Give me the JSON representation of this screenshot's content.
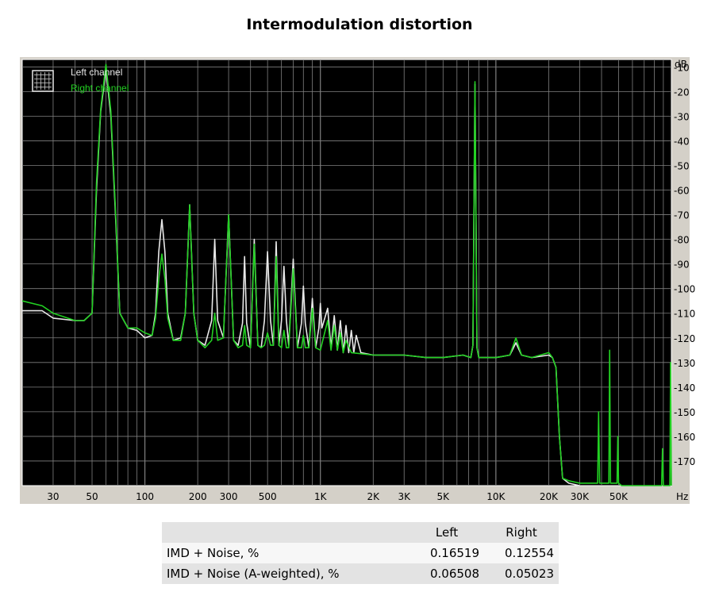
{
  "page": {
    "title": "Intermodulation distortion"
  },
  "chart_data": {
    "type": "line",
    "title": "Intermodulation distortion",
    "xlabel": "Hz",
    "ylabel": "dB",
    "xscale": "log",
    "xlim": [
      20,
      100000
    ],
    "ylim": [
      -180,
      -7
    ],
    "x_ticks": [
      {
        "v": 30,
        "label": "30"
      },
      {
        "v": 50,
        "label": "50"
      },
      {
        "v": 100,
        "label": "100"
      },
      {
        "v": 200,
        "label": "200"
      },
      {
        "v": 300,
        "label": "300"
      },
      {
        "v": 500,
        "label": "500"
      },
      {
        "v": 1000,
        "label": "1K"
      },
      {
        "v": 2000,
        "label": "2K"
      },
      {
        "v": 3000,
        "label": "3K"
      },
      {
        "v": 5000,
        "label": "5K"
      },
      {
        "v": 10000,
        "label": "10K"
      },
      {
        "v": 20000,
        "label": "20K"
      },
      {
        "v": 30000,
        "label": "30K"
      },
      {
        "v": 50000,
        "label": "50K"
      }
    ],
    "y_ticks": [
      -10,
      -20,
      -30,
      -40,
      -50,
      -60,
      -70,
      -80,
      -90,
      -100,
      -110,
      -120,
      -130,
      -140,
      -150,
      -160,
      -170
    ],
    "grid": true,
    "legend_position": "top-left",
    "colors": {
      "background": "#000000",
      "grid": "#808080",
      "left": "#e8e8e8",
      "right": "#22d022",
      "panel": "#d4d0c8"
    },
    "series": [
      {
        "name": "Left channel",
        "color": "#e8e8e8",
        "points": [
          [
            20,
            -109
          ],
          [
            26,
            -109
          ],
          [
            30,
            -112
          ],
          [
            40,
            -113
          ],
          [
            45,
            -113
          ],
          [
            50,
            -110
          ],
          [
            53,
            -60
          ],
          [
            56,
            -28
          ],
          [
            60,
            -11
          ],
          [
            64,
            -30
          ],
          [
            68,
            -70
          ],
          [
            72,
            -110
          ],
          [
            80,
            -116
          ],
          [
            90,
            -117
          ],
          [
            100,
            -120
          ],
          [
            110,
            -119
          ],
          [
            115,
            -110
          ],
          [
            120,
            -85
          ],
          [
            125,
            -72
          ],
          [
            130,
            -85
          ],
          [
            135,
            -110
          ],
          [
            145,
            -121
          ],
          [
            160,
            -120
          ],
          [
            170,
            -110
          ],
          [
            180,
            -66
          ],
          [
            190,
            -110
          ],
          [
            200,
            -121
          ],
          [
            220,
            -123
          ],
          [
            240,
            -113
          ],
          [
            250,
            -80
          ],
          [
            260,
            -113
          ],
          [
            280,
            -120
          ],
          [
            300,
            -70
          ],
          [
            320,
            -121
          ],
          [
            340,
            -123
          ],
          [
            360,
            -114
          ],
          [
            370,
            -87
          ],
          [
            380,
            -114
          ],
          [
            400,
            -124
          ],
          [
            420,
            -80
          ],
          [
            440,
            -123
          ],
          [
            460,
            -124
          ],
          [
            480,
            -113
          ],
          [
            500,
            -85
          ],
          [
            520,
            -113
          ],
          [
            540,
            -123
          ],
          [
            560,
            -81
          ],
          [
            580,
            -123
          ],
          [
            600,
            -113
          ],
          [
            620,
            -91
          ],
          [
            640,
            -113
          ],
          [
            660,
            -123
          ],
          [
            700,
            -88
          ],
          [
            740,
            -124
          ],
          [
            780,
            -114
          ],
          [
            800,
            -99
          ],
          [
            820,
            -114
          ],
          [
            860,
            -124
          ],
          [
            900,
            -104
          ],
          [
            940,
            -124
          ],
          [
            980,
            -116
          ],
          [
            1000,
            -106
          ],
          [
            1020,
            -116
          ],
          [
            1100,
            -108
          ],
          [
            1150,
            -124
          ],
          [
            1200,
            -111
          ],
          [
            1250,
            -125
          ],
          [
            1300,
            -113
          ],
          [
            1350,
            -126
          ],
          [
            1400,
            -115
          ],
          [
            1450,
            -126
          ],
          [
            1500,
            -117
          ],
          [
            1550,
            -126
          ],
          [
            1600,
            -119
          ],
          [
            1700,
            -126
          ],
          [
            2000,
            -127
          ],
          [
            3000,
            -127
          ],
          [
            4000,
            -128
          ],
          [
            5000,
            -128
          ],
          [
            6500,
            -127
          ],
          [
            7200,
            -128
          ],
          [
            7400,
            -123
          ],
          [
            7600,
            -17
          ],
          [
            7800,
            -124
          ],
          [
            8000,
            -128
          ],
          [
            10000,
            -128
          ],
          [
            12000,
            -127
          ],
          [
            13000,
            -122
          ],
          [
            14000,
            -127
          ],
          [
            16000,
            -128
          ],
          [
            20000,
            -127
          ],
          [
            21000,
            -128
          ],
          [
            22000,
            -132
          ],
          [
            23000,
            -160
          ],
          [
            24000,
            -177
          ],
          [
            26000,
            -179
          ],
          [
            30000,
            -180
          ]
        ]
      },
      {
        "name": "Right channel",
        "color": "#22d022",
        "points": [
          [
            20,
            -105
          ],
          [
            26,
            -107
          ],
          [
            30,
            -110
          ],
          [
            40,
            -113
          ],
          [
            45,
            -113
          ],
          [
            50,
            -110
          ],
          [
            53,
            -57
          ],
          [
            56,
            -27
          ],
          [
            60,
            -9
          ],
          [
            64,
            -28
          ],
          [
            68,
            -68
          ],
          [
            72,
            -110
          ],
          [
            80,
            -116
          ],
          [
            90,
            -116
          ],
          [
            100,
            -118
          ],
          [
            110,
            -119
          ],
          [
            115,
            -112
          ],
          [
            120,
            -96
          ],
          [
            125,
            -86
          ],
          [
            130,
            -96
          ],
          [
            135,
            -112
          ],
          [
            145,
            -121
          ],
          [
            160,
            -121
          ],
          [
            170,
            -110
          ],
          [
            180,
            -66
          ],
          [
            190,
            -110
          ],
          [
            200,
            -121
          ],
          [
            220,
            -124
          ],
          [
            240,
            -121
          ],
          [
            250,
            -110
          ],
          [
            260,
            -121
          ],
          [
            280,
            -120
          ],
          [
            300,
            -70
          ],
          [
            320,
            -121
          ],
          [
            340,
            -124
          ],
          [
            360,
            -123
          ],
          [
            370,
            -115
          ],
          [
            380,
            -123
          ],
          [
            400,
            -124
          ],
          [
            420,
            -82
          ],
          [
            440,
            -123
          ],
          [
            460,
            -124
          ],
          [
            480,
            -123
          ],
          [
            500,
            -118
          ],
          [
            520,
            -123
          ],
          [
            540,
            -123
          ],
          [
            560,
            -87
          ],
          [
            580,
            -123
          ],
          [
            600,
            -124
          ],
          [
            620,
            -117
          ],
          [
            640,
            -124
          ],
          [
            660,
            -124
          ],
          [
            700,
            -92
          ],
          [
            740,
            -124
          ],
          [
            780,
            -124
          ],
          [
            800,
            -119
          ],
          [
            820,
            -124
          ],
          [
            860,
            -124
          ],
          [
            900,
            -108
          ],
          [
            940,
            -124
          ],
          [
            1000,
            -125
          ],
          [
            1100,
            -113
          ],
          [
            1150,
            -125
          ],
          [
            1200,
            -115
          ],
          [
            1250,
            -125
          ],
          [
            1300,
            -118
          ],
          [
            1350,
            -126
          ],
          [
            1400,
            -121
          ],
          [
            1500,
            -126
          ],
          [
            2000,
            -127
          ],
          [
            3000,
            -127
          ],
          [
            4000,
            -128
          ],
          [
            5000,
            -128
          ],
          [
            6500,
            -127
          ],
          [
            7200,
            -128
          ],
          [
            7400,
            -123
          ],
          [
            7600,
            -16
          ],
          [
            7800,
            -124
          ],
          [
            8000,
            -128
          ],
          [
            10000,
            -128
          ],
          [
            12000,
            -127
          ],
          [
            13000,
            -120
          ],
          [
            14000,
            -127
          ],
          [
            16000,
            -128
          ],
          [
            20000,
            -126
          ],
          [
            21000,
            -128
          ],
          [
            22000,
            -132
          ],
          [
            23000,
            -160
          ],
          [
            24000,
            -177
          ],
          [
            26000,
            -178
          ],
          [
            30000,
            -179
          ],
          [
            38000,
            -179
          ],
          [
            38500,
            -150
          ],
          [
            39000,
            -179
          ],
          [
            44000,
            -179
          ],
          [
            44500,
            -125
          ],
          [
            45000,
            -179
          ],
          [
            49000,
            -179
          ],
          [
            49500,
            -160
          ],
          [
            50000,
            -179
          ],
          [
            52000,
            -180
          ],
          [
            88000,
            -180
          ],
          [
            89000,
            -165
          ],
          [
            90000,
            -180
          ],
          [
            98000,
            -180
          ],
          [
            99000,
            -130
          ],
          [
            100000,
            -180
          ]
        ]
      }
    ]
  },
  "legend": {
    "left_label": "Left channel",
    "right_label": "Right channel"
  },
  "results": {
    "col_left": "Left",
    "col_right": "Right",
    "rows": [
      {
        "label": "IMD + Noise, %",
        "left": "0.16519",
        "right": "0.12554"
      },
      {
        "label": "IMD + Noise (A-weighted), %",
        "left": "0.06508",
        "right": "0.05023"
      }
    ]
  }
}
